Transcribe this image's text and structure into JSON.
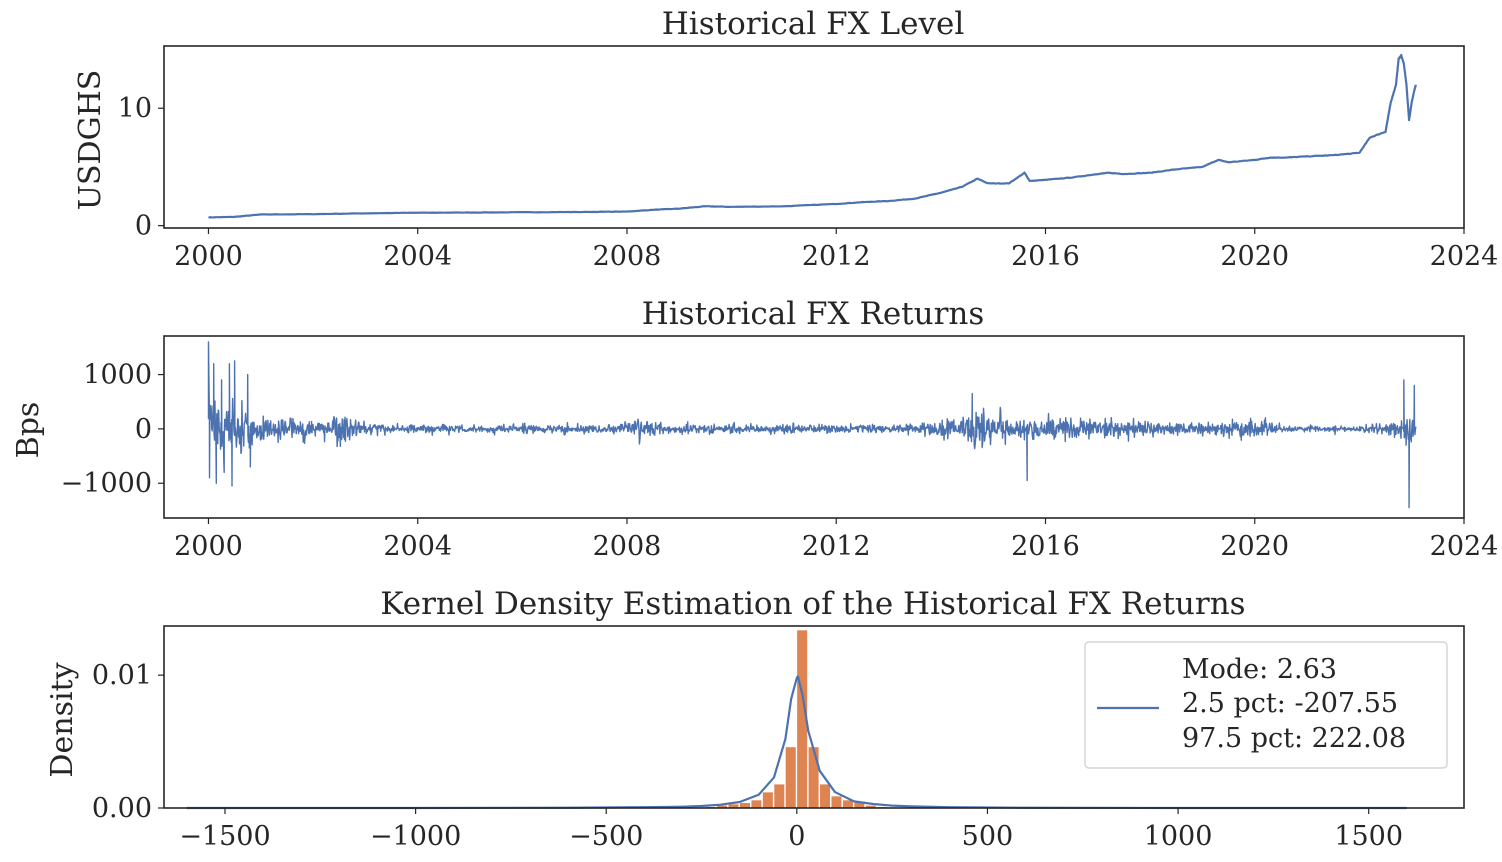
{
  "chart_data": [
    {
      "type": "line",
      "title": "Historical FX Level",
      "ylabel": "USDGHS",
      "xlabel": "",
      "x_ticks": [
        "2000",
        "2004",
        "2008",
        "2012",
        "2016",
        "2020",
        "2024"
      ],
      "y_ticks": [
        "0",
        "10"
      ],
      "xlim": [
        1999.15,
        2024.0
      ],
      "ylim": [
        -0.2,
        15.3
      ],
      "grid": false,
      "color": "#4C72B0",
      "series": [
        {
          "x": [
            2000.0,
            2000.5,
            2001.0,
            2002.0,
            2003.0,
            2004.0,
            2005.0,
            2006.0,
            2007.0,
            2008.0,
            2008.5,
            2009.0,
            2009.5,
            2010.0,
            2011.0,
            2012.0,
            2012.5,
            2013.0,
            2013.5,
            2014.0,
            2014.4,
            2014.7,
            2014.9,
            2015.3,
            2015.6,
            2015.7,
            2016.0,
            2016.5,
            2017.0,
            2017.2,
            2017.5,
            2018.0,
            2018.5,
            2019.0,
            2019.3,
            2019.5,
            2020.0,
            2020.3,
            2020.6,
            2021.0,
            2021.5,
            2022.0,
            2022.2,
            2022.5,
            2022.6,
            2022.7,
            2022.75,
            2022.8,
            2022.85,
            2022.9,
            2022.95,
            2023.0,
            2023.05,
            2023.08
          ],
          "y": [
            0.7,
            0.75,
            0.95,
            0.98,
            1.05,
            1.1,
            1.12,
            1.14,
            1.16,
            1.2,
            1.35,
            1.45,
            1.65,
            1.6,
            1.65,
            1.85,
            2.0,
            2.1,
            2.3,
            2.8,
            3.3,
            4.0,
            3.6,
            3.6,
            4.5,
            3.8,
            3.9,
            4.1,
            4.4,
            4.5,
            4.4,
            4.5,
            4.8,
            5.0,
            5.6,
            5.4,
            5.6,
            5.8,
            5.8,
            5.9,
            6.0,
            6.2,
            7.5,
            8.0,
            10.5,
            12.0,
            14.2,
            14.5,
            13.8,
            12.0,
            9.0,
            10.5,
            11.5,
            12.0
          ]
        }
      ]
    },
    {
      "type": "line",
      "title": "Historical FX Returns",
      "ylabel": "Bps",
      "xlabel": "",
      "x_ticks": [
        "2000",
        "2004",
        "2008",
        "2012",
        "2016",
        "2020",
        "2024"
      ],
      "y_ticks": [
        "1000",
        "0",
        "−1000"
      ],
      "xlim": [
        1999.15,
        2024.0
      ],
      "ylim": [
        -1640,
        1710
      ],
      "grid": false,
      "color": "#4C72B0",
      "volatility_regimes": {
        "x": [
          2000.0,
          2000.5,
          2001.0,
          2001.5,
          2002.0,
          2002.5,
          2003.0,
          2004.0,
          2005.0,
          2006.0,
          2007.0,
          2007.8,
          2008.3,
          2008.8,
          2009.5,
          2010.0,
          2011.0,
          2012.0,
          2012.5,
          2013.0,
          2014.0,
          2014.5,
          2015.0,
          2015.5,
          2016.0,
          2016.5,
          2017.0,
          2017.5,
          2018.0,
          2018.5,
          2019.0,
          2019.5,
          2020.0,
          2020.5,
          2021.0,
          2021.5,
          2022.0,
          2022.5,
          2022.8,
          2023.0
        ],
        "amplitude": [
          900,
          450,
          300,
          220,
          200,
          250,
          150,
          100,
          90,
          100,
          80,
          130,
          220,
          110,
          90,
          80,
          80,
          90,
          80,
          70,
          200,
          350,
          250,
          280,
          240,
          250,
          200,
          180,
          170,
          160,
          150,
          180,
          170,
          80,
          60,
          50,
          60,
          150,
          250,
          300
        ]
      },
      "spikes": [
        {
          "x": 2000.0,
          "y": 1600
        },
        {
          "x": 2000.02,
          "y": -900
        },
        {
          "x": 2000.1,
          "y": 1200
        },
        {
          "x": 2000.15,
          "y": -1000
        },
        {
          "x": 2000.25,
          "y": 900
        },
        {
          "x": 2000.3,
          "y": -800
        },
        {
          "x": 2000.45,
          "y": -1050
        },
        {
          "x": 2000.4,
          "y": 1200
        },
        {
          "x": 2000.5,
          "y": 1250
        },
        {
          "x": 2000.75,
          "y": 1000
        },
        {
          "x": 2000.8,
          "y": -700
        },
        {
          "x": 2014.6,
          "y": 650
        },
        {
          "x": 2015.65,
          "y": -950
        },
        {
          "x": 2022.85,
          "y": 900
        },
        {
          "x": 2022.95,
          "y": -1450
        },
        {
          "x": 2023.05,
          "y": 800
        }
      ]
    },
    {
      "type": "histogram+kde",
      "title": "Kernel Density Estimation of the Historical FX Returns",
      "ylabel": "Density",
      "xlabel": "",
      "x_ticks": [
        "−1500",
        "−1000",
        "−500",
        "0",
        "500",
        "1000",
        "1500"
      ],
      "y_ticks": [
        "0.00",
        "0.01"
      ],
      "xlim": [
        -1660,
        1750
      ],
      "ylim": [
        0,
        0.0137
      ],
      "grid": false,
      "hist_color": "#DD8452",
      "kde_color": "#4C72B0",
      "hist": {
        "bin_edges": [
          -240,
          -210,
          -180,
          -150,
          -120,
          -90,
          -60,
          -30,
          0,
          30,
          60,
          90,
          120,
          150,
          180,
          210,
          240
        ],
        "counts": [
          0.0001,
          0.0002,
          0.0003,
          0.0004,
          0.0006,
          0.0012,
          0.0018,
          0.0046,
          0.0134,
          0.0046,
          0.0018,
          0.0009,
          0.0006,
          0.0005,
          0.0002,
          0.0001
        ]
      },
      "kde": {
        "x": [
          -1600,
          -1000,
          -600,
          -400,
          -300,
          -250,
          -200,
          -150,
          -100,
          -60,
          -30,
          -15,
          0,
          2.63,
          15,
          30,
          60,
          100,
          150,
          200,
          250,
          300,
          400,
          600,
          1000,
          1600
        ],
        "y": [
          0.0,
          0.0,
          2e-05,
          6e-05,
          0.0001,
          0.00015,
          0.00025,
          0.00045,
          0.001,
          0.0023,
          0.0052,
          0.0082,
          0.0098,
          0.0099,
          0.0085,
          0.0058,
          0.0028,
          0.0012,
          0.0005,
          0.0003,
          0.00018,
          0.00012,
          6e-05,
          2e-05,
          0.0,
          0.0
        ]
      },
      "legend": {
        "placement": "top-right",
        "lines": [
          "Mode: 2.63",
          "2.5 pct: -207.55",
          "97.5 pct: 222.08"
        ]
      }
    }
  ]
}
